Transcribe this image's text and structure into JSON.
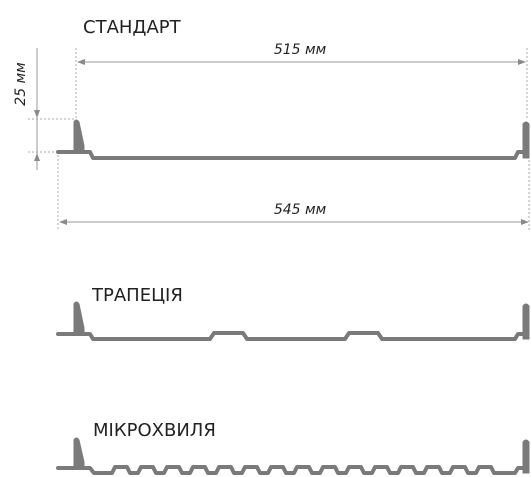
{
  "profiles": {
    "standard": {
      "label": "СТАНДАРТ"
    },
    "trapezoid": {
      "label": "ТРАПЕЦІЯ"
    },
    "microwave": {
      "label": "МІКРОХВИЛЯ"
    }
  },
  "dimensions": {
    "working_width": "515 мм",
    "total_width": "545 мм",
    "rib_height": "25 мм"
  },
  "colors": {
    "profile": "#7a7a7a",
    "dimension_line": "#9a9a9a",
    "text": "#222222"
  }
}
